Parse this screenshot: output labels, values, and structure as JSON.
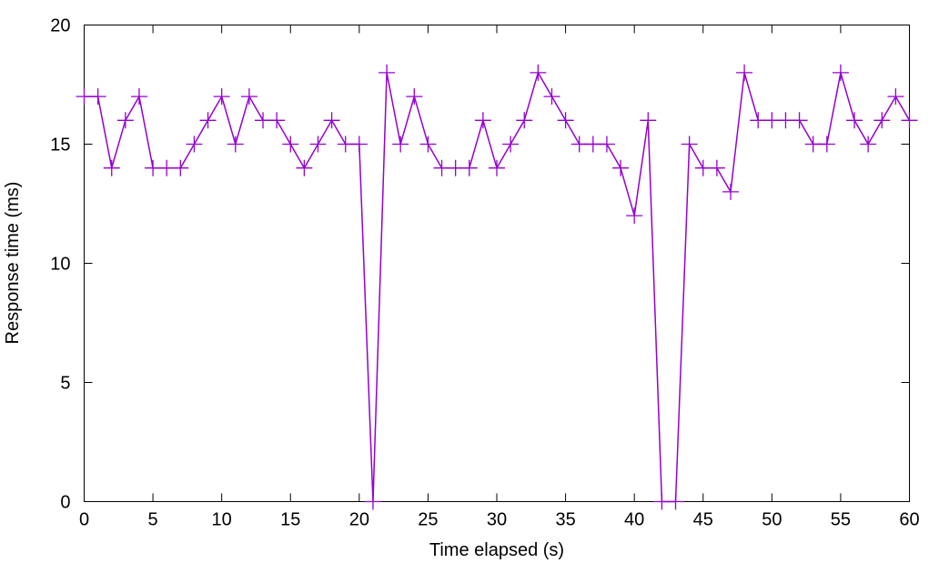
{
  "chart_data": {
    "type": "line",
    "xlabel": "Time elapsed (s)",
    "ylabel": "Response time (ms)",
    "xlim": [
      0,
      60
    ],
    "ylim": [
      0,
      20
    ],
    "xticks": [
      0,
      5,
      10,
      15,
      20,
      25,
      30,
      35,
      40,
      45,
      50,
      55,
      60
    ],
    "yticks": [
      0,
      5,
      10,
      15,
      20
    ],
    "grid": false,
    "marker": "plus",
    "colors": {
      "series": "#9400d3",
      "axis": "#000000"
    },
    "series": [
      {
        "x": [
          0,
          1,
          2,
          3,
          4,
          5,
          6,
          7,
          8,
          9,
          10,
          11,
          12,
          13,
          14,
          15,
          16,
          17,
          18,
          19,
          20,
          21,
          22,
          23,
          24,
          25,
          26,
          27,
          28,
          29,
          30,
          31,
          32,
          33,
          34,
          35,
          36,
          37,
          38,
          39,
          40,
          41,
          42,
          43,
          44,
          45,
          46,
          47,
          48,
          49,
          50,
          51,
          52,
          53,
          54,
          55,
          56,
          57,
          58,
          59,
          60
        ],
        "y": [
          17,
          17,
          14,
          16,
          17,
          14,
          14,
          14,
          15,
          16,
          17,
          15,
          17,
          16,
          16,
          15,
          14,
          15,
          16,
          15,
          15,
          0,
          18,
          15,
          17,
          15,
          14,
          14,
          14,
          16,
          14,
          15,
          16,
          18,
          17,
          16,
          15,
          15,
          15,
          14,
          12,
          16,
          0,
          0,
          15,
          14,
          14,
          13,
          18,
          16,
          16,
          16,
          16,
          15,
          15,
          18,
          16,
          15,
          16,
          17,
          16
        ]
      }
    ]
  }
}
